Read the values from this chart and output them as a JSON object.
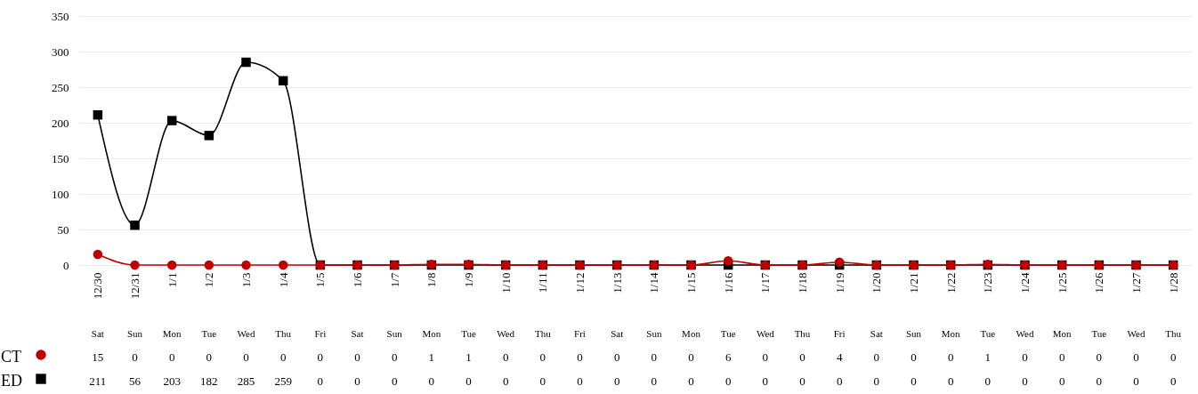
{
  "chart_data": {
    "type": "line",
    "categories": [
      "12/30",
      "12/31",
      "1/1",
      "1/2",
      "1/3",
      "1/4",
      "1/5",
      "1/6",
      "1/7",
      "1/8",
      "1/9",
      "1/10",
      "1/11",
      "1/12",
      "1/13",
      "1/14",
      "1/15",
      "1/16",
      "1/17",
      "1/18",
      "1/19",
      "1/20",
      "1/21",
      "1/22",
      "1/23",
      "1/24",
      "1/25",
      "1/26",
      "1/27",
      "1/28"
    ],
    "series": [
      {
        "name": "CT",
        "color": "#c00000",
        "marker": "circle",
        "values": [
          15,
          0,
          0,
          0,
          0,
          0,
          0,
          0,
          0,
          1,
          1,
          0,
          0,
          0,
          0,
          0,
          0,
          6,
          0,
          0,
          4,
          0,
          0,
          0,
          1,
          0,
          0,
          0,
          0,
          0
        ]
      },
      {
        "name": "ED",
        "color": "#000000",
        "marker": "square",
        "values": [
          211,
          56,
          203,
          182,
          285,
          259,
          0,
          0,
          0,
          0,
          0,
          0,
          0,
          0,
          0,
          0,
          0,
          0,
          0,
          0,
          0,
          0,
          0,
          0,
          0,
          0,
          0,
          0,
          0,
          0
        ]
      }
    ],
    "ylim": [
      0,
      350
    ],
    "yticks": [
      0,
      50,
      100,
      150,
      200,
      250,
      300,
      350
    ],
    "grid": "y",
    "data_labels": true,
    "legend": "bottom left",
    "annotations": [
      "Sat",
      "Sun",
      "Mon",
      "Tue",
      "Wed",
      "Thu",
      "Fri",
      "Sat",
      "Sun",
      "Mon",
      "Tue",
      "Wed",
      "Thu",
      "Fri",
      "Sat",
      "Sun",
      "Mon",
      "Tue",
      "Wed",
      "Thu",
      "Fri",
      "Sat",
      "Sun",
      "Mon",
      "Tue",
      "Wed",
      "Mon",
      "Tue",
      "Wed",
      "Thu"
    ]
  }
}
